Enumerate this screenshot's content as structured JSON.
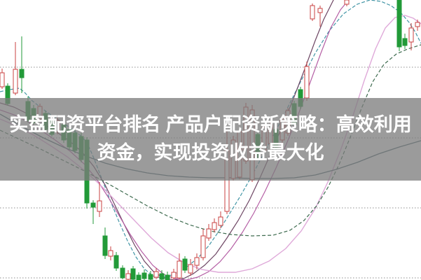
{
  "page": {
    "background_color": "#ffffff"
  },
  "overlay": {
    "line1": "实盘配资平台排名 产品户配资新策略：高效利用",
    "line2": "资金，实现投资收益最大化",
    "text_color": "#ffffff",
    "band_color": "rgba(124,124,124,0.76)"
  },
  "chart_data": {
    "type": "candlestick",
    "units": "pixels",
    "axis": {
      "x_range": [
        0,
        601
      ],
      "y_range": [
        0,
        400
      ],
      "axis_labels_visible": false
    },
    "grid": {
      "y_lines": [
        96,
        197,
        297,
        397
      ],
      "color": "#8f8f8f",
      "style": "dotted"
    },
    "candles": {
      "up_color": "#c84040",
      "up_fill": "#ffffff",
      "down_color": "#229a38",
      "body_width": 6,
      "format": [
        "x",
        "wick_top",
        "body_top",
        "body_bottom",
        "wick_bottom",
        "direction"
      ],
      "points": [
        [
          3,
          98,
          104,
          124,
          127,
          "up"
        ],
        [
          11,
          119,
          123,
          148,
          151,
          "down"
        ],
        [
          22,
          60,
          99,
          133,
          136,
          "up"
        ],
        [
          31,
          52,
          99,
          111,
          133,
          "down"
        ],
        [
          40,
          138,
          145,
          172,
          175,
          "down"
        ],
        [
          48,
          150,
          155,
          175,
          178,
          "down"
        ],
        [
          57,
          148,
          152,
          170,
          174,
          "up"
        ],
        [
          65,
          158,
          162,
          185,
          188,
          "down"
        ],
        [
          74,
          166,
          170,
          192,
          195,
          "down"
        ],
        [
          82,
          168,
          172,
          188,
          192,
          "up"
        ],
        [
          91,
          174,
          178,
          200,
          204,
          "down"
        ],
        [
          99,
          181,
          185,
          210,
          214,
          "down"
        ],
        [
          107,
          186,
          190,
          215,
          219,
          "down"
        ],
        [
          116,
          190,
          195,
          228,
          232,
          "down"
        ],
        [
          124,
          196,
          200,
          290,
          298,
          "down"
        ],
        [
          133,
          286,
          290,
          296,
          320,
          "down"
        ],
        [
          142,
          260,
          287,
          302,
          310,
          "up"
        ],
        [
          150,
          325,
          337,
          365,
          370,
          "down"
        ],
        [
          158,
          352,
          358,
          366,
          372,
          "up"
        ],
        [
          166,
          360,
          365,
          383,
          387,
          "down"
        ],
        [
          175,
          379,
          383,
          397,
          399,
          "down"
        ],
        [
          183,
          386,
          391,
          399,
          400,
          "up"
        ],
        [
          190,
          380,
          384,
          399,
          400,
          "down"
        ],
        [
          198,
          389,
          393,
          400,
          400,
          "down"
        ],
        [
          206,
          385,
          390,
          398,
          400,
          "down"
        ],
        [
          215,
          387,
          392,
          399,
          400,
          "down"
        ],
        [
          223,
          383,
          388,
          396,
          399,
          "up"
        ],
        [
          231,
          386,
          391,
          399,
          400,
          "down"
        ],
        [
          239,
          388,
          393,
          400,
          400,
          "down"
        ],
        [
          248,
          384,
          389,
          397,
          399,
          "up"
        ],
        [
          256,
          362,
          373,
          397,
          399,
          "up"
        ],
        [
          264,
          366,
          370,
          386,
          390,
          "down"
        ],
        [
          272,
          370,
          378,
          390,
          394,
          "up"
        ],
        [
          281,
          362,
          368,
          379,
          385,
          "up"
        ],
        [
          290,
          327,
          337,
          368,
          372,
          "up"
        ],
        [
          298,
          320,
          327,
          340,
          344,
          "up"
        ],
        [
          306,
          312,
          318,
          328,
          332,
          "up"
        ],
        [
          315,
          302,
          310,
          322,
          326,
          "up"
        ],
        [
          324,
          185,
          215,
          302,
          306,
          "up"
        ],
        [
          333,
          194,
          200,
          255,
          258,
          "up"
        ],
        [
          342,
          184,
          188,
          253,
          256,
          "up"
        ],
        [
          351,
          147,
          153,
          230,
          234,
          "up"
        ],
        [
          360,
          150,
          157,
          257,
          260,
          "up"
        ],
        [
          368,
          186,
          192,
          225,
          228,
          "down"
        ],
        [
          377,
          178,
          182,
          215,
          219,
          "up"
        ],
        [
          386,
          174,
          178,
          205,
          209,
          "up"
        ],
        [
          394,
          181,
          185,
          210,
          214,
          "down"
        ],
        [
          403,
          166,
          170,
          200,
          204,
          "up"
        ],
        [
          411,
          154,
          158,
          190,
          194,
          "up"
        ],
        [
          420,
          144,
          148,
          178,
          182,
          "down"
        ],
        [
          429,
          124,
          128,
          152,
          156,
          "down"
        ],
        [
          438,
          88,
          95,
          140,
          144,
          "up"
        ],
        [
          446,
          5,
          8,
          27,
          30,
          "up"
        ],
        [
          457,
          8,
          12,
          18,
          38,
          "up"
        ],
        [
          495,
          0,
          0,
          6,
          9,
          "up"
        ],
        [
          570,
          0,
          0,
          67,
          73,
          "down"
        ],
        [
          578,
          48,
          55,
          65,
          70,
          "down"
        ],
        [
          587,
          33,
          40,
          60,
          72,
          "up"
        ],
        [
          596,
          28,
          32,
          38,
          44,
          "up"
        ]
      ]
    },
    "ma_lines": [
      {
        "name": "ma-fast-teal",
        "color": "#4396a6",
        "width": 1.2,
        "dash": "5 2.5",
        "points": [
          [
            0,
            131
          ],
          [
            14,
            128
          ],
          [
            28,
            126
          ],
          [
            36,
            133
          ],
          [
            46,
            144
          ],
          [
            60,
            155
          ],
          [
            74,
            165
          ],
          [
            88,
            174
          ],
          [
            102,
            184
          ],
          [
            114,
            193
          ],
          [
            124,
            203
          ],
          [
            134,
            226
          ],
          [
            146,
            257
          ],
          [
            158,
            288
          ],
          [
            170,
            317
          ],
          [
            182,
            344
          ],
          [
            194,
            367
          ],
          [
            206,
            384
          ],
          [
            218,
            394
          ],
          [
            230,
            397
          ],
          [
            242,
            394
          ],
          [
            256,
            388
          ],
          [
            270,
            379
          ],
          [
            284,
            367
          ],
          [
            298,
            351
          ],
          [
            312,
            331
          ],
          [
            326,
            308
          ],
          [
            342,
            282
          ],
          [
            358,
            254
          ],
          [
            374,
            224
          ],
          [
            392,
            190
          ],
          [
            410,
            155
          ],
          [
            430,
            115
          ],
          [
            450,
            76
          ],
          [
            470,
            44
          ],
          [
            490,
            20
          ],
          [
            510,
            6
          ],
          [
            528,
            0
          ],
          [
            544,
            2
          ],
          [
            558,
            8
          ],
          [
            572,
            18
          ],
          [
            584,
            32
          ],
          [
            593,
            46
          ],
          [
            601,
            62
          ]
        ]
      },
      {
        "name": "ma-purple",
        "color": "#6d4563",
        "width": 1.2,
        "dash": "",
        "points": [
          [
            0,
            147
          ],
          [
            20,
            153
          ],
          [
            40,
            163
          ],
          [
            60,
            175
          ],
          [
            80,
            188
          ],
          [
            100,
            202
          ],
          [
            118,
            218
          ],
          [
            134,
            238
          ],
          [
            150,
            264
          ],
          [
            164,
            293
          ],
          [
            178,
            322
          ],
          [
            192,
            350
          ],
          [
            206,
            373
          ],
          [
            220,
            389
          ],
          [
            234,
            397
          ],
          [
            248,
            400
          ],
          [
            262,
            398
          ],
          [
            276,
            391
          ],
          [
            292,
            379
          ],
          [
            308,
            363
          ],
          [
            324,
            340
          ],
          [
            340,
            315
          ],
          [
            356,
            286
          ],
          [
            372,
            252
          ],
          [
            388,
            216
          ],
          [
            404,
            178
          ],
          [
            420,
            138
          ],
          [
            436,
            96
          ],
          [
            450,
            58
          ],
          [
            462,
            28
          ],
          [
            472,
            8
          ],
          [
            478,
            -4
          ]
        ]
      },
      {
        "name": "ma-magenta",
        "color": "#b55fa5",
        "width": 1.2,
        "dash": "",
        "points": [
          [
            0,
            157
          ],
          [
            20,
            164
          ],
          [
            40,
            174
          ],
          [
            60,
            187
          ],
          [
            80,
            201
          ],
          [
            100,
            216
          ],
          [
            120,
            234
          ],
          [
            138,
            256
          ],
          [
            154,
            281
          ],
          [
            170,
            308
          ],
          [
            186,
            335
          ],
          [
            202,
            359
          ],
          [
            218,
            379
          ],
          [
            234,
            392
          ],
          [
            250,
            398
          ],
          [
            266,
            400
          ],
          [
            282,
            396
          ],
          [
            298,
            388
          ],
          [
            314,
            374
          ],
          [
            330,
            355
          ],
          [
            346,
            332
          ],
          [
            362,
            305
          ],
          [
            378,
            274
          ],
          [
            394,
            240
          ],
          [
            410,
            203
          ],
          [
            426,
            163
          ],
          [
            442,
            120
          ],
          [
            458,
            76
          ],
          [
            472,
            40
          ],
          [
            486,
            14
          ],
          [
            496,
            2
          ],
          [
            503,
            -5
          ]
        ]
      },
      {
        "name": "ma-pink",
        "color": "#dfa9d9",
        "width": 1.4,
        "dash": "",
        "points": [
          [
            0,
            170
          ],
          [
            24,
            180
          ],
          [
            48,
            193
          ],
          [
            72,
            208
          ],
          [
            96,
            224
          ],
          [
            120,
            243
          ],
          [
            144,
            265
          ],
          [
            168,
            290
          ],
          [
            192,
            315
          ],
          [
            216,
            340
          ],
          [
            240,
            361
          ],
          [
            264,
            376
          ],
          [
            288,
            385
          ],
          [
            312,
            389
          ],
          [
            336,
            389
          ],
          [
            360,
            384
          ],
          [
            384,
            373
          ],
          [
            408,
            355
          ],
          [
            430,
            330
          ],
          [
            450,
            298
          ],
          [
            468,
            260
          ],
          [
            486,
            215
          ],
          [
            504,
            165
          ],
          [
            520,
            115
          ],
          [
            536,
            70
          ],
          [
            550,
            40
          ],
          [
            564,
            25
          ],
          [
            578,
            22
          ],
          [
            590,
            26
          ],
          [
            601,
            34
          ]
        ]
      },
      {
        "name": "ma-green-dashed",
        "color": "#3e6b4f",
        "width": 1.2,
        "dash": "5 3",
        "points": [
          [
            0,
            186
          ],
          [
            30,
            200
          ],
          [
            60,
            214
          ],
          [
            90,
            229
          ],
          [
            120,
            244
          ],
          [
            150,
            260
          ],
          [
            180,
            277
          ],
          [
            210,
            294
          ],
          [
            240,
            309
          ],
          [
            270,
            321
          ],
          [
            300,
            330
          ],
          [
            330,
            335
          ],
          [
            360,
            337
          ],
          [
            390,
            336
          ],
          [
            414,
            329
          ],
          [
            434,
            315
          ],
          [
            452,
            294
          ],
          [
            468,
            268
          ],
          [
            484,
            235
          ],
          [
            500,
            196
          ],
          [
            516,
            155
          ],
          [
            532,
            117
          ],
          [
            548,
            92
          ],
          [
            566,
            77
          ],
          [
            582,
            70
          ],
          [
            601,
            64
          ]
        ]
      },
      {
        "name": "ma-slate",
        "color": "#47646e",
        "width": 1.3,
        "dash": "",
        "points": [
          [
            0,
            163
          ],
          [
            30,
            180
          ],
          [
            60,
            196
          ],
          [
            90,
            210
          ],
          [
            120,
            222
          ],
          [
            150,
            233
          ],
          [
            180,
            241
          ],
          [
            210,
            247
          ],
          [
            240,
            251
          ],
          [
            270,
            253
          ],
          [
            300,
            254
          ],
          [
            330,
            254
          ],
          [
            360,
            255
          ],
          [
            390,
            255
          ],
          [
            420,
            254
          ],
          [
            450,
            250
          ],
          [
            480,
            242
          ],
          [
            510,
            232
          ],
          [
            540,
            220
          ],
          [
            570,
            210
          ],
          [
            601,
            201
          ]
        ]
      }
    ]
  }
}
